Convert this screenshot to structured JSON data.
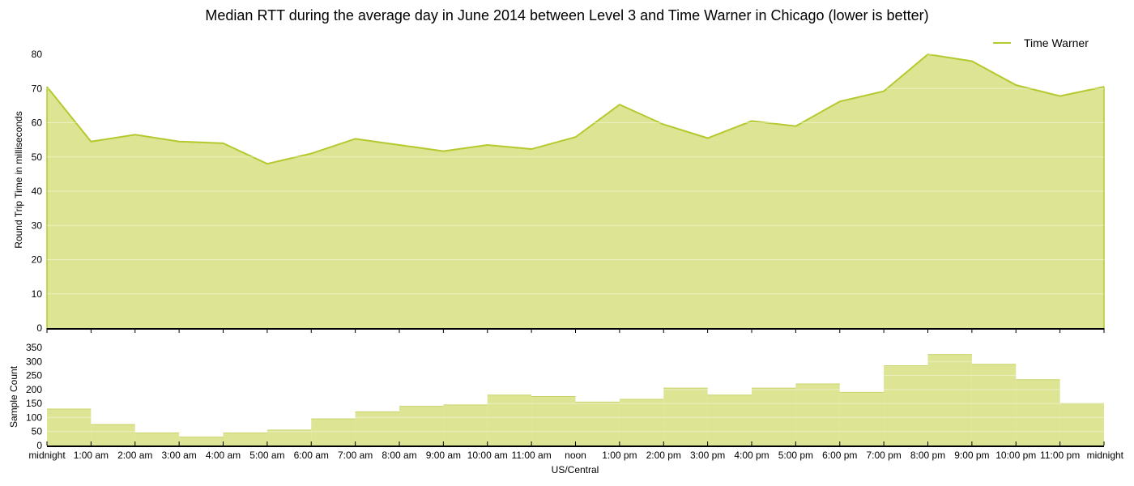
{
  "chart_data": [
    {
      "type": "area",
      "title": "Median RTT during the average day in June 2014 between Level 3 and Time Warner in Chicago (lower is better)",
      "ylabel": "Round Trip Time in milliseconds",
      "ylim": [
        0,
        80
      ],
      "yticks": [
        0,
        10,
        20,
        30,
        40,
        50,
        60,
        70,
        80
      ],
      "grid": true,
      "legend_position": "top-right",
      "color": "#b5c92e",
      "fill_color": "#dde493",
      "x": [
        "midnight",
        "1:00 am",
        "2:00 am",
        "3:00 am",
        "4:00 am",
        "5:00 am",
        "6:00 am",
        "7:00 am",
        "8:00 am",
        "9:00 am",
        "10:00 am",
        "11:00 am",
        "noon",
        "1:00 pm",
        "2:00 pm",
        "3:00 pm",
        "4:00 pm",
        "5:00 pm",
        "6:00 pm",
        "7:00 pm",
        "8:00 pm",
        "9:00 pm",
        "10:00 pm",
        "11:00 pm",
        "midnight"
      ],
      "series": [
        {
          "name": "Time Warner",
          "values": [
            70.5,
            54.5,
            56.5,
            54.5,
            54,
            48,
            51,
            55.3,
            53.5,
            51.7,
            53.5,
            52.3,
            55.8,
            65.3,
            59.5,
            55.5,
            60.5,
            59,
            66.2,
            69.2,
            80,
            78,
            71,
            67.8,
            70.5
          ]
        }
      ]
    },
    {
      "type": "bar",
      "ylabel": "Sample Count",
      "xlabel": "US/Central",
      "ylim": [
        0,
        350
      ],
      "yticks": [
        0,
        50,
        100,
        150,
        200,
        250,
        300,
        350
      ],
      "grid": true,
      "color": "#dde493",
      "categories": [
        "midnight",
        "1:00 am",
        "2:00 am",
        "3:00 am",
        "4:00 am",
        "5:00 am",
        "6:00 am",
        "7:00 am",
        "8:00 am",
        "9:00 am",
        "10:00 am",
        "11:00 am",
        "noon",
        "1:00 pm",
        "2:00 pm",
        "3:00 pm",
        "4:00 pm",
        "5:00 pm",
        "6:00 pm",
        "7:00 pm",
        "8:00 pm",
        "9:00 pm",
        "10:00 pm",
        "11:00 pm"
      ],
      "values": [
        130,
        75,
        45,
        30,
        45,
        55,
        95,
        120,
        140,
        145,
        180,
        175,
        155,
        165,
        205,
        180,
        205,
        220,
        190,
        285,
        325,
        290,
        235,
        150
      ]
    }
  ],
  "x_tick_labels": [
    "midnight",
    "1:00 am",
    "2:00 am",
    "3:00 am",
    "4:00 am",
    "5:00 am",
    "6:00 am",
    "7:00 am",
    "8:00 am",
    "9:00 am",
    "10:00 am",
    "11:00 am",
    "noon",
    "1:00 pm",
    "2:00 pm",
    "3:00 pm",
    "4:00 pm",
    "5:00 pm",
    "6:00 pm",
    "7:00 pm",
    "8:00 pm",
    "9:00 pm",
    "10:00 pm",
    "11:00 pm",
    "midnight"
  ]
}
